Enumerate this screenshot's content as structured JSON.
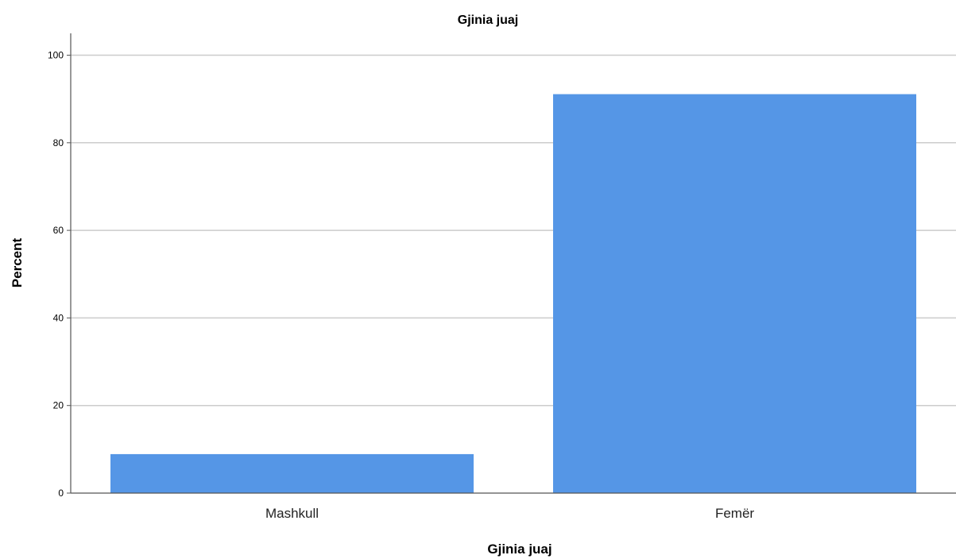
{
  "chart_data": {
    "type": "bar",
    "title": "Gjinia juaj",
    "xlabel": "Gjinia juaj",
    "ylabel": "Percent",
    "categories": [
      "Mashkull",
      "Femër"
    ],
    "values": [
      8.9,
      91.1
    ],
    "ylim": [
      0,
      105
    ],
    "yticks": [
      0,
      20,
      40,
      60,
      80,
      100
    ],
    "ytick_labels": [
      "0",
      "20",
      "40",
      "60",
      "80",
      "100"
    ],
    "grid": "horizontal",
    "colors": {
      "bar": "#5596e6",
      "grid": "#cccccc",
      "axis": "#555555"
    }
  }
}
